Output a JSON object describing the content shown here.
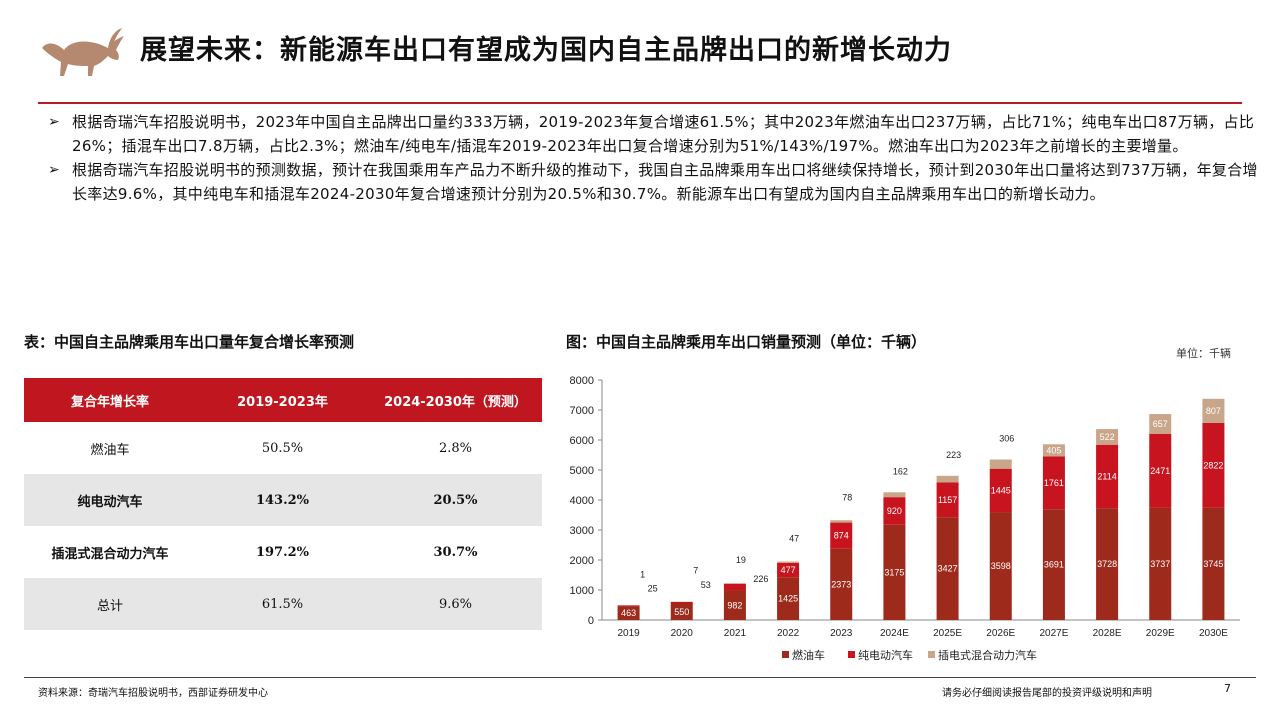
{
  "page": {
    "title": "展望未来：新能源车出口有望成为国内自主品牌出口的新增长动力",
    "bullets": [
      "根据奇瑞汽车招股说明书，2023年中国自主品牌出口量约333万辆，2019-2023年复合增速61.5%；其中2023年燃油车出口237万辆，占比71%；纯电车出口87万辆，占比26%；插混车出口7.8万辆，占比2.3%；燃油车/纯电车/插混车2019-2023年出口复合增速分别为51%/143%/197%。燃油车出口为2023年之前增长的主要增量。",
      "根据奇瑞汽车招股说明书的预测数据，预计在我国乘用车产品力不断升级的推动下，我国自主品牌乘用车出口将继续保持增长，预计到2030年出口量将达到737万辆，年复合增长率达9.6%，其中纯电车和插混车2024-2030年复合增速预计分别为20.5%和30.7%。新能源车出口有望成为国内自主品牌乘用车出口的新增长动力。"
    ],
    "bullet_mark": "➢",
    "source": "资料来源：奇瑞汽车招股说明书，西部证券研发中心",
    "disclaimer": "请务必仔细阅读报告尾部的投资评级说明和声明",
    "page_number": "7"
  },
  "table": {
    "title": "表：中国自主品牌乘用车出口量年复合增长率预测",
    "headers": [
      "复合年增长率",
      "2019-2023年",
      "2024-2030年（预测）"
    ],
    "rows": [
      {
        "label": "燃油车",
        "a": "50.5%",
        "b": "2.8%"
      },
      {
        "label": "纯电动汽车",
        "a": "143.2%",
        "b": "20.5%"
      },
      {
        "label": "插混式混合动力汽车",
        "a": "197.2%",
        "b": "30.7%"
      },
      {
        "label": "总计",
        "a": "61.5%",
        "b": "9.6%"
      }
    ]
  },
  "figure": {
    "title": "图：中国自主品牌乘用车出口销量预测（单位：千辆）",
    "unit_note": "单位：千辆"
  },
  "chart_data": {
    "type": "bar",
    "stacked": true,
    "categories": [
      "2019",
      "2020",
      "2021",
      "2022",
      "2023",
      "2024E",
      "2025E",
      "2026E",
      "2027E",
      "2028E",
      "2029E",
      "2030E"
    ],
    "series": [
      {
        "name": "燃油车",
        "color": "#9e2a1c",
        "values": [
          463,
          550,
          982,
          1425,
          2373,
          3175,
          3427,
          3598,
          3691,
          3728,
          3737,
          3745
        ]
      },
      {
        "name": "纯电动汽车",
        "color": "#c8141e",
        "values": [
          25,
          53,
          226,
          477,
          874,
          920,
          1157,
          1445,
          1761,
          2114,
          2471,
          2822
        ]
      },
      {
        "name": "插电式混合动力汽车",
        "color": "#c9a58a",
        "values": [
          1,
          7,
          19,
          47,
          78,
          162,
          223,
          306,
          405,
          522,
          657,
          807
        ]
      }
    ],
    "ylim": [
      0,
      8000
    ],
    "yticks": [
      0,
      1000,
      2000,
      3000,
      4000,
      5000,
      6000,
      7000,
      8000
    ],
    "legend": "bottom",
    "grid": false
  }
}
